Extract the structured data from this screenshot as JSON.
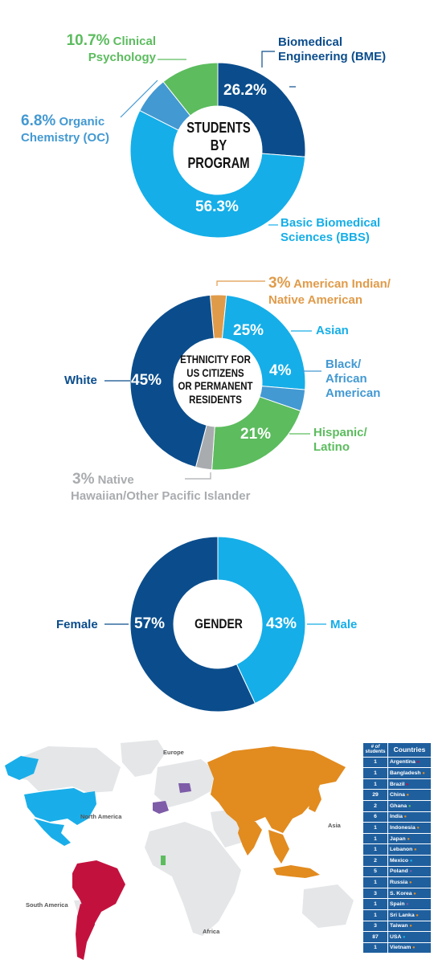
{
  "colors": {
    "bme": "#0b4d8c",
    "bbs": "#15aee8",
    "oc": "#4399d2",
    "cp": "#5cbc5e",
    "ai": "#e09b4a",
    "asian": "#15aee8",
    "black": "#4399d2",
    "hispanic": "#5cbc5e",
    "nh": "#a9acaf",
    "white": "#0b4d8c",
    "female": "#0b4d8c",
    "male": "#15aee8",
    "map_base": "#e4e6e8",
    "map_blue": "#19aee9",
    "map_red": "#c3113e",
    "map_orange": "#e28b1f",
    "map_purple": "#7e5ca8",
    "map_green": "#5cbc5e",
    "table_bg": "#1f5f9e"
  },
  "chart_data": [
    {
      "type": "pie",
      "title": "STUDENTS BY PROGRAM",
      "title_lines": [
        "STUDENTS",
        "BY",
        "PROGRAM"
      ],
      "slices": [
        {
          "label": "Biomedical Engineering (BME)",
          "lines": [
            "Biomedical",
            "Engineering (BME)"
          ],
          "value": 26.2,
          "pct_text": "26.2%",
          "color": "#0b4d8c"
        },
        {
          "label": "Basic Biomedical Sciences (BBS)",
          "lines": [
            "Basic Biomedical",
            "Sciences (BBS)"
          ],
          "value": 56.3,
          "pct_text": "56.3%",
          "color": "#15aee8"
        },
        {
          "label": "Organic Chemistry (OC)",
          "pct_text": "6.8%",
          "lines": [
            "Organic",
            "Chemistry (OC)"
          ],
          "value": 6.8,
          "color": "#4399d2"
        },
        {
          "label": "Clinical Psychology",
          "pct_text": "10.7%",
          "lines": [
            "Clinical",
            "Psychology"
          ],
          "value": 10.7,
          "color": "#5cbc5e"
        }
      ]
    },
    {
      "type": "pie",
      "title": "ETHNICITY FOR US CITIZENS OR PERMANENT RESIDENTS",
      "title_lines": [
        "ETHNICITY FOR",
        "US CITIZENS",
        "OR PERMANENT",
        "RESIDENTS"
      ],
      "slices": [
        {
          "label": "American Indian/ Native American",
          "pct_text": "3%",
          "lines": [
            "American Indian/",
            "Native American"
          ],
          "value": 3,
          "color": "#e09b4a"
        },
        {
          "label": "Asian",
          "pct_text": "25%",
          "lines": [
            "Asian"
          ],
          "value": 25,
          "color": "#15aee8"
        },
        {
          "label": "Black/ African American",
          "pct_text": "4%",
          "lines": [
            "Black/",
            "African",
            "American"
          ],
          "value": 4,
          "color": "#4399d2"
        },
        {
          "label": "Hispanic/ Latino",
          "pct_text": "21%",
          "lines": [
            "Hispanic/",
            "Latino"
          ],
          "value": 21,
          "color": "#5cbc5e"
        },
        {
          "label": "Native Hawaiian/Other Pacific Islander",
          "pct_text": "3%",
          "lines": [
            "Native",
            "Hawaiian/Other Pacific Islander"
          ],
          "value": 3,
          "color": "#a9acaf"
        },
        {
          "label": "White",
          "pct_text": "45%",
          "lines": [
            "White"
          ],
          "value": 45,
          "color": "#0b4d8c"
        }
      ]
    },
    {
      "type": "pie",
      "title": "GENDER",
      "title_lines": [
        "GENDER"
      ],
      "slices": [
        {
          "label": "Male",
          "pct_text": "43%",
          "value": 43,
          "color": "#15aee8"
        },
        {
          "label": "Female",
          "pct_text": "57%",
          "value": 57,
          "color": "#0b4d8c"
        }
      ]
    },
    {
      "type": "table",
      "columns": [
        "# of students",
        "Countries"
      ],
      "column_lines": [
        [
          "# of",
          "students"
        ],
        [
          "Countries"
        ]
      ],
      "rows": [
        {
          "n": "1",
          "country": "Argentina",
          "marker": "red"
        },
        {
          "n": "1",
          "country": "Bangladesh",
          "marker": "orange"
        },
        {
          "n": "1",
          "country": "Brazil",
          "marker": "red"
        },
        {
          "n": "29",
          "country": "China",
          "marker": "orange"
        },
        {
          "n": "2",
          "country": "Ghana",
          "marker": "green"
        },
        {
          "n": "6",
          "country": "India",
          "marker": "orange"
        },
        {
          "n": "1",
          "country": "Indonesia",
          "marker": "orange"
        },
        {
          "n": "1",
          "country": "Japan",
          "marker": "orange"
        },
        {
          "n": "1",
          "country": "Lebanon",
          "marker": "orange"
        },
        {
          "n": "2",
          "country": "Mexico",
          "marker": "blue"
        },
        {
          "n": "5",
          "country": "Poland",
          "marker": "purple"
        },
        {
          "n": "1",
          "country": "Russia",
          "marker": "orange"
        },
        {
          "n": "3",
          "country": "S. Korea",
          "marker": "orange"
        },
        {
          "n": "1",
          "country": "Spain",
          "marker": "purple"
        },
        {
          "n": "1",
          "country": "Sri Lanka",
          "marker": "orange"
        },
        {
          "n": "3",
          "country": "Taiwan",
          "marker": "orange"
        },
        {
          "n": "87",
          "country": "USA",
          "marker": "blue"
        },
        {
          "n": "1",
          "country": "Vietnam",
          "marker": "orange"
        }
      ]
    }
  ],
  "map": {
    "labels": {
      "europe": "Europe",
      "north_america": "North America",
      "asia": "Asia",
      "south_america": "South America",
      "africa": "Africa"
    }
  }
}
